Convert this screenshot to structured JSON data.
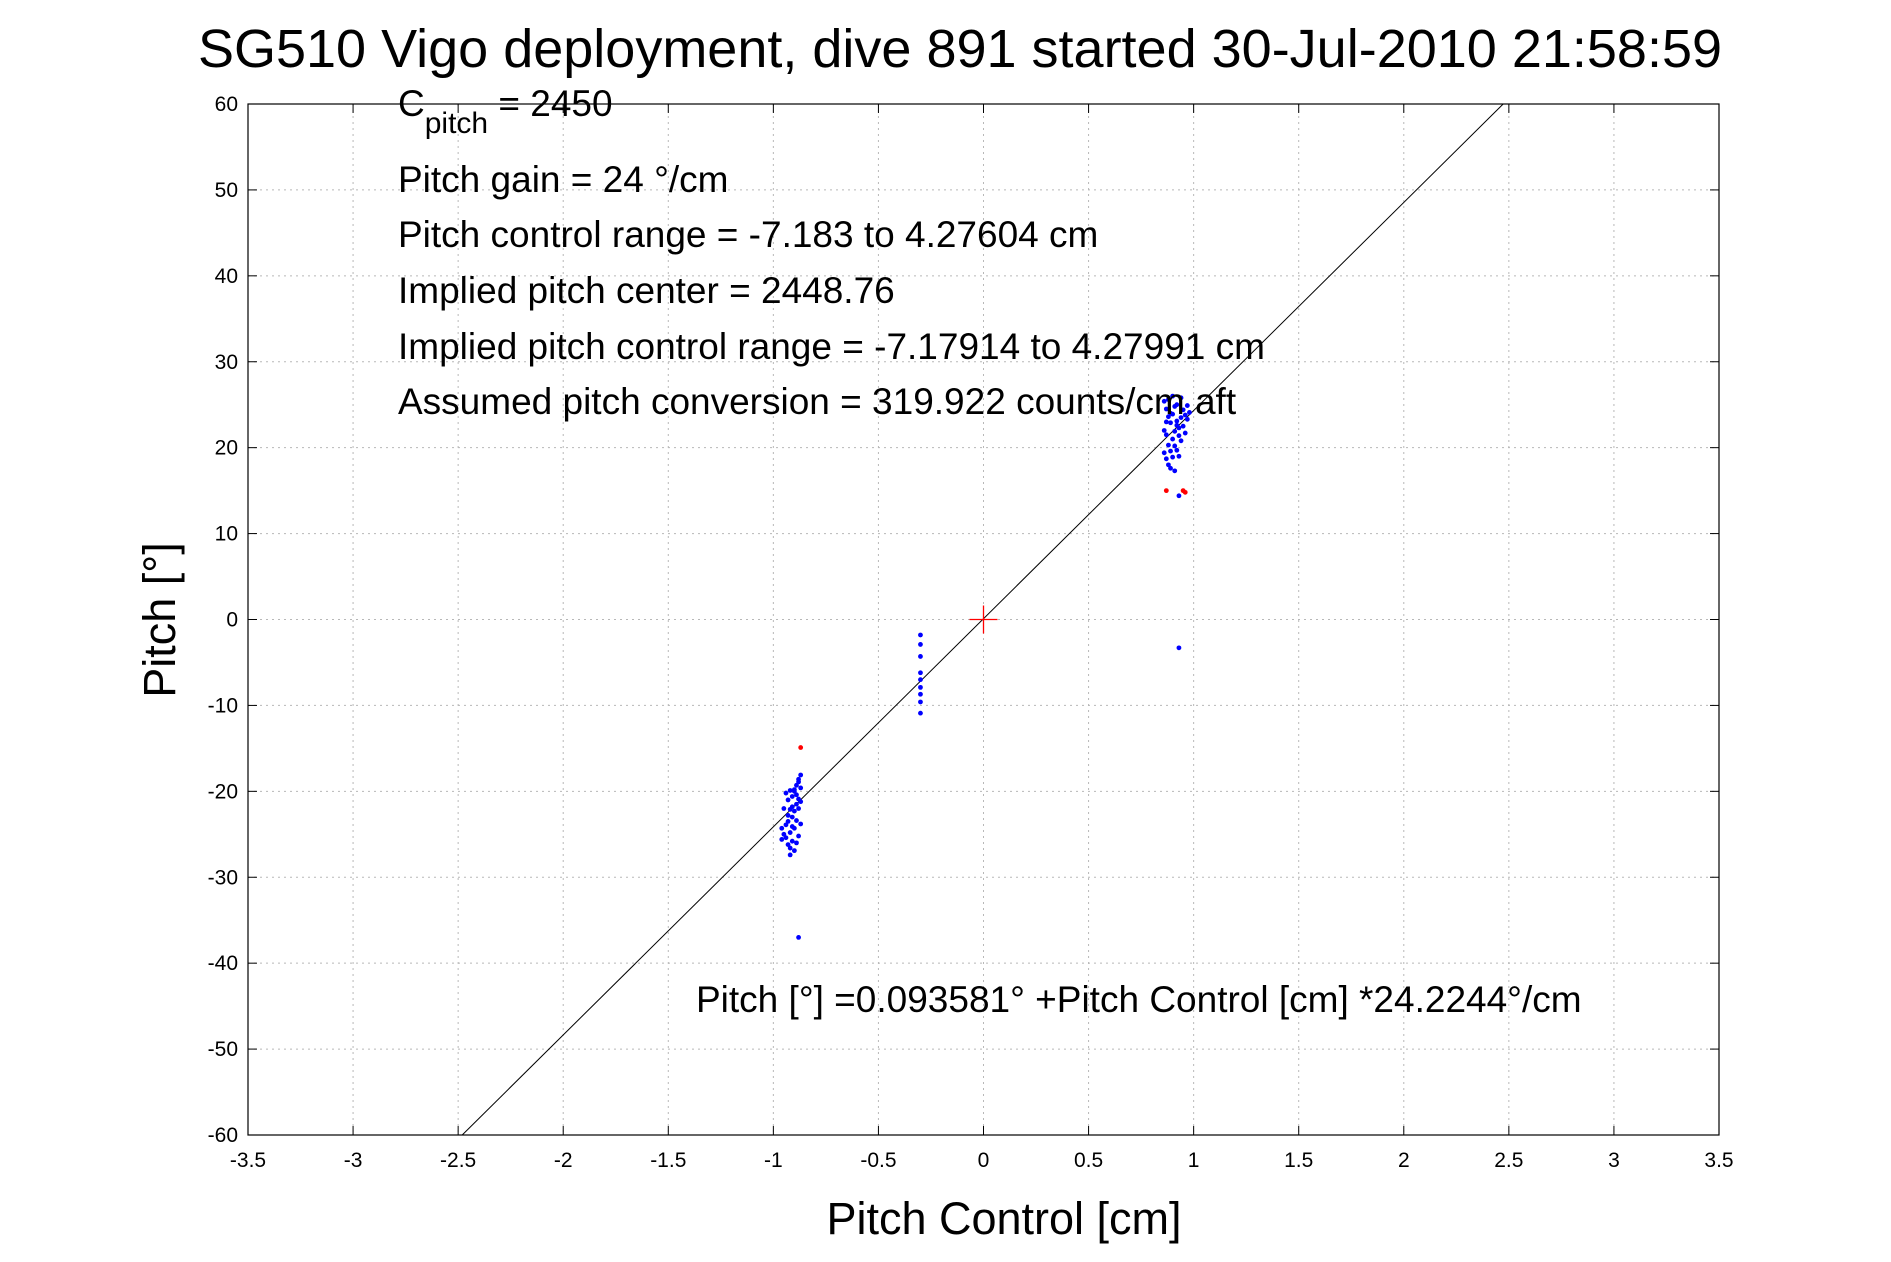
{
  "chart_data": {
    "type": "scatter",
    "title": "SG510 Vigo deployment, dive 891 started 30-Jul-2010 21:58:59",
    "xlabel": "Pitch Control [cm]",
    "ylabel": "Pitch [°]",
    "xlim": [
      -3.5,
      3.5
    ],
    "ylim": [
      -60,
      60
    ],
    "xticks": [
      -3.5,
      -3,
      -2.5,
      -2,
      -1.5,
      -1,
      -0.5,
      0,
      0.5,
      1,
      1.5,
      2,
      2.5,
      3,
      3.5
    ],
    "yticks": [
      -60,
      -50,
      -40,
      -30,
      -20,
      -10,
      0,
      10,
      20,
      30,
      40,
      50,
      60
    ],
    "xtick_labels": [
      "-3.5",
      "-3",
      "-2.5",
      "-2",
      "-1.5",
      "-1",
      "-0.5",
      "0",
      "0.5",
      "1",
      "1.5",
      "2",
      "2.5",
      "3",
      "3.5"
    ],
    "ytick_labels": [
      "-60",
      "-50",
      "-40",
      "-30",
      "-20",
      "-10",
      "0",
      "10",
      "20",
      "30",
      "40",
      "50",
      "60"
    ],
    "grid": true,
    "annotations": {
      "c_pitch_base": "C",
      "c_pitch_sub": "pitch",
      "c_pitch_value": " = 2450",
      "pitch_gain": "Pitch gain = 24 °/cm",
      "control_range": "Pitch control range = -7.183 to 4.27604 cm",
      "implied_center": "Implied pitch center = 2448.76",
      "implied_range": "Implied pitch control range = -7.17914 to 4.27991 cm",
      "assumed_conversion": "Assumed pitch conversion = 319.922 counts/cm aft",
      "fit_equation": "Pitch [°] =0.093581° +Pitch Control [cm] *24.2244°/cm"
    },
    "fit_line": {
      "intercept": 0.093581,
      "slope": 24.2244
    },
    "center_marker": {
      "x": 0,
      "y": 0,
      "color": "#ff0000"
    },
    "series": [
      {
        "color": "#0000ff",
        "points": [
          [
            -0.94,
            -20.2
          ],
          [
            -0.93,
            -21.0
          ],
          [
            -0.92,
            -22.1
          ],
          [
            -0.91,
            -20.6
          ],
          [
            -0.9,
            -19.8
          ],
          [
            -0.89,
            -19.3
          ],
          [
            -0.88,
            -18.6
          ],
          [
            -0.87,
            -18.1
          ],
          [
            -0.93,
            -23.5
          ],
          [
            -0.92,
            -24.8
          ],
          [
            -0.91,
            -23.0
          ],
          [
            -0.9,
            -22.3
          ],
          [
            -0.89,
            -21.5
          ],
          [
            -0.88,
            -20.9
          ],
          [
            -0.87,
            -19.6
          ],
          [
            -0.94,
            -25.4
          ],
          [
            -0.93,
            -26.2
          ],
          [
            -0.92,
            -27.4
          ],
          [
            -0.91,
            -25.8
          ],
          [
            -0.9,
            -24.3
          ],
          [
            -0.89,
            -23.4
          ],
          [
            -0.88,
            -22.0
          ],
          [
            -0.96,
            -24.3
          ],
          [
            -0.95,
            -25.0
          ],
          [
            -0.92,
            -26.6
          ],
          [
            -0.9,
            -26.9
          ],
          [
            -0.88,
            -25.2
          ],
          [
            -0.87,
            -23.8
          ],
          [
            -0.93,
            -22.8
          ],
          [
            -0.91,
            -21.8
          ],
          [
            -0.89,
            -20.4
          ],
          [
            -0.94,
            -23.9
          ],
          [
            -0.9,
            -20.0
          ],
          [
            -0.88,
            -18.9
          ],
          [
            -0.92,
            -19.9
          ],
          [
            -0.95,
            -22.0
          ],
          [
            -0.96,
            -25.6
          ],
          [
            -0.89,
            -26.0
          ],
          [
            -0.87,
            -21.2
          ],
          [
            -0.91,
            -24.1
          ],
          [
            -0.88,
            -37.0
          ],
          [
            -0.3,
            -1.8
          ],
          [
            -0.3,
            -2.9
          ],
          [
            -0.3,
            -4.3
          ],
          [
            -0.3,
            -6.2
          ],
          [
            -0.3,
            -7.0
          ],
          [
            -0.3,
            -7.9
          ],
          [
            -0.3,
            -8.7
          ],
          [
            -0.3,
            -9.6
          ],
          [
            -0.3,
            -10.9
          ],
          [
            0.86,
            25.4
          ],
          [
            0.87,
            24.5
          ],
          [
            0.88,
            23.6
          ],
          [
            0.89,
            22.9
          ],
          [
            0.9,
            23.9
          ],
          [
            0.91,
            24.8
          ],
          [
            0.92,
            23.1
          ],
          [
            0.93,
            22.3
          ],
          [
            0.94,
            23.5
          ],
          [
            0.95,
            24.4
          ],
          [
            0.96,
            23.8
          ],
          [
            0.97,
            24.9
          ],
          [
            0.98,
            24.1
          ],
          [
            0.87,
            21.5
          ],
          [
            0.88,
            20.3
          ],
          [
            0.89,
            19.6
          ],
          [
            0.9,
            21.0
          ],
          [
            0.91,
            21.9
          ],
          [
            0.92,
            22.6
          ],
          [
            0.93,
            21.4
          ],
          [
            0.94,
            20.8
          ],
          [
            0.86,
            19.4
          ],
          [
            0.87,
            18.7
          ],
          [
            0.88,
            18.0
          ],
          [
            0.89,
            17.6
          ],
          [
            0.9,
            18.9
          ],
          [
            0.91,
            17.3
          ],
          [
            0.92,
            19.7
          ],
          [
            0.93,
            19.0
          ],
          [
            0.95,
            22.5
          ],
          [
            0.96,
            21.7
          ],
          [
            0.97,
            23.3
          ],
          [
            0.86,
            22.0
          ],
          [
            0.88,
            25.6
          ],
          [
            0.9,
            26.0
          ],
          [
            0.92,
            25.0
          ],
          [
            0.94,
            25.8
          ],
          [
            0.89,
            24.0
          ],
          [
            0.91,
            20.2
          ],
          [
            0.87,
            23.0
          ],
          [
            0.93,
            14.4
          ],
          [
            0.93,
            -3.3
          ]
        ]
      },
      {
        "color": "#ff0000",
        "points": [
          [
            -0.87,
            -14.9
          ],
          [
            0.87,
            15.0
          ],
          [
            0.95,
            15.0
          ],
          [
            0.96,
            14.8
          ]
        ]
      }
    ]
  }
}
